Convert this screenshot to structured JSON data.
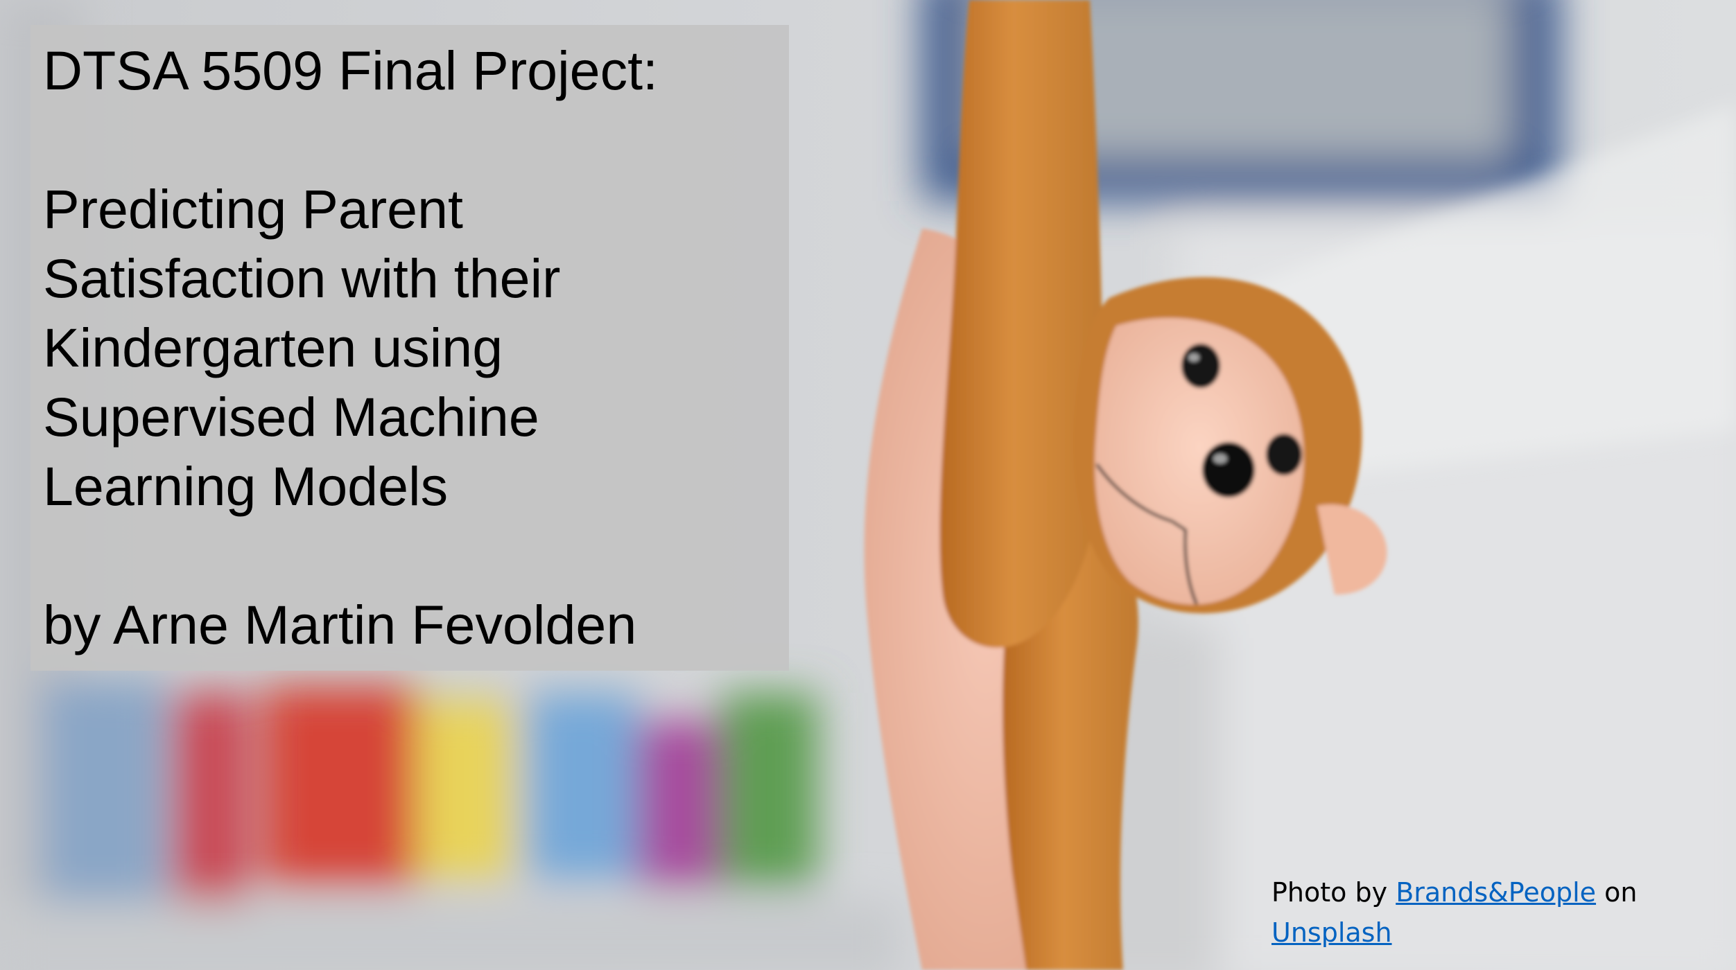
{
  "slide": {
    "heading": "DTSA 5509 Final Project:",
    "title_lines": [
      "Predicting Parent",
      "Satisfaction with their",
      "Kindergarten using",
      "Supervised Machine",
      "Learning Models"
    ],
    "author": "by Arne Martin Fevolden"
  },
  "photo_credit": {
    "prefix": "Photo by",
    "photographer_link": "Brands&People",
    "middle": "on",
    "source_link": "Unsplash"
  },
  "photo": {
    "subject": "plush-monkey-toy",
    "colors": {
      "fur": "#d38a3a",
      "face": "#f6c6b0",
      "background": "#cfd1d4",
      "frame": "#3c5a8c",
      "link": "#0563c1"
    }
  }
}
